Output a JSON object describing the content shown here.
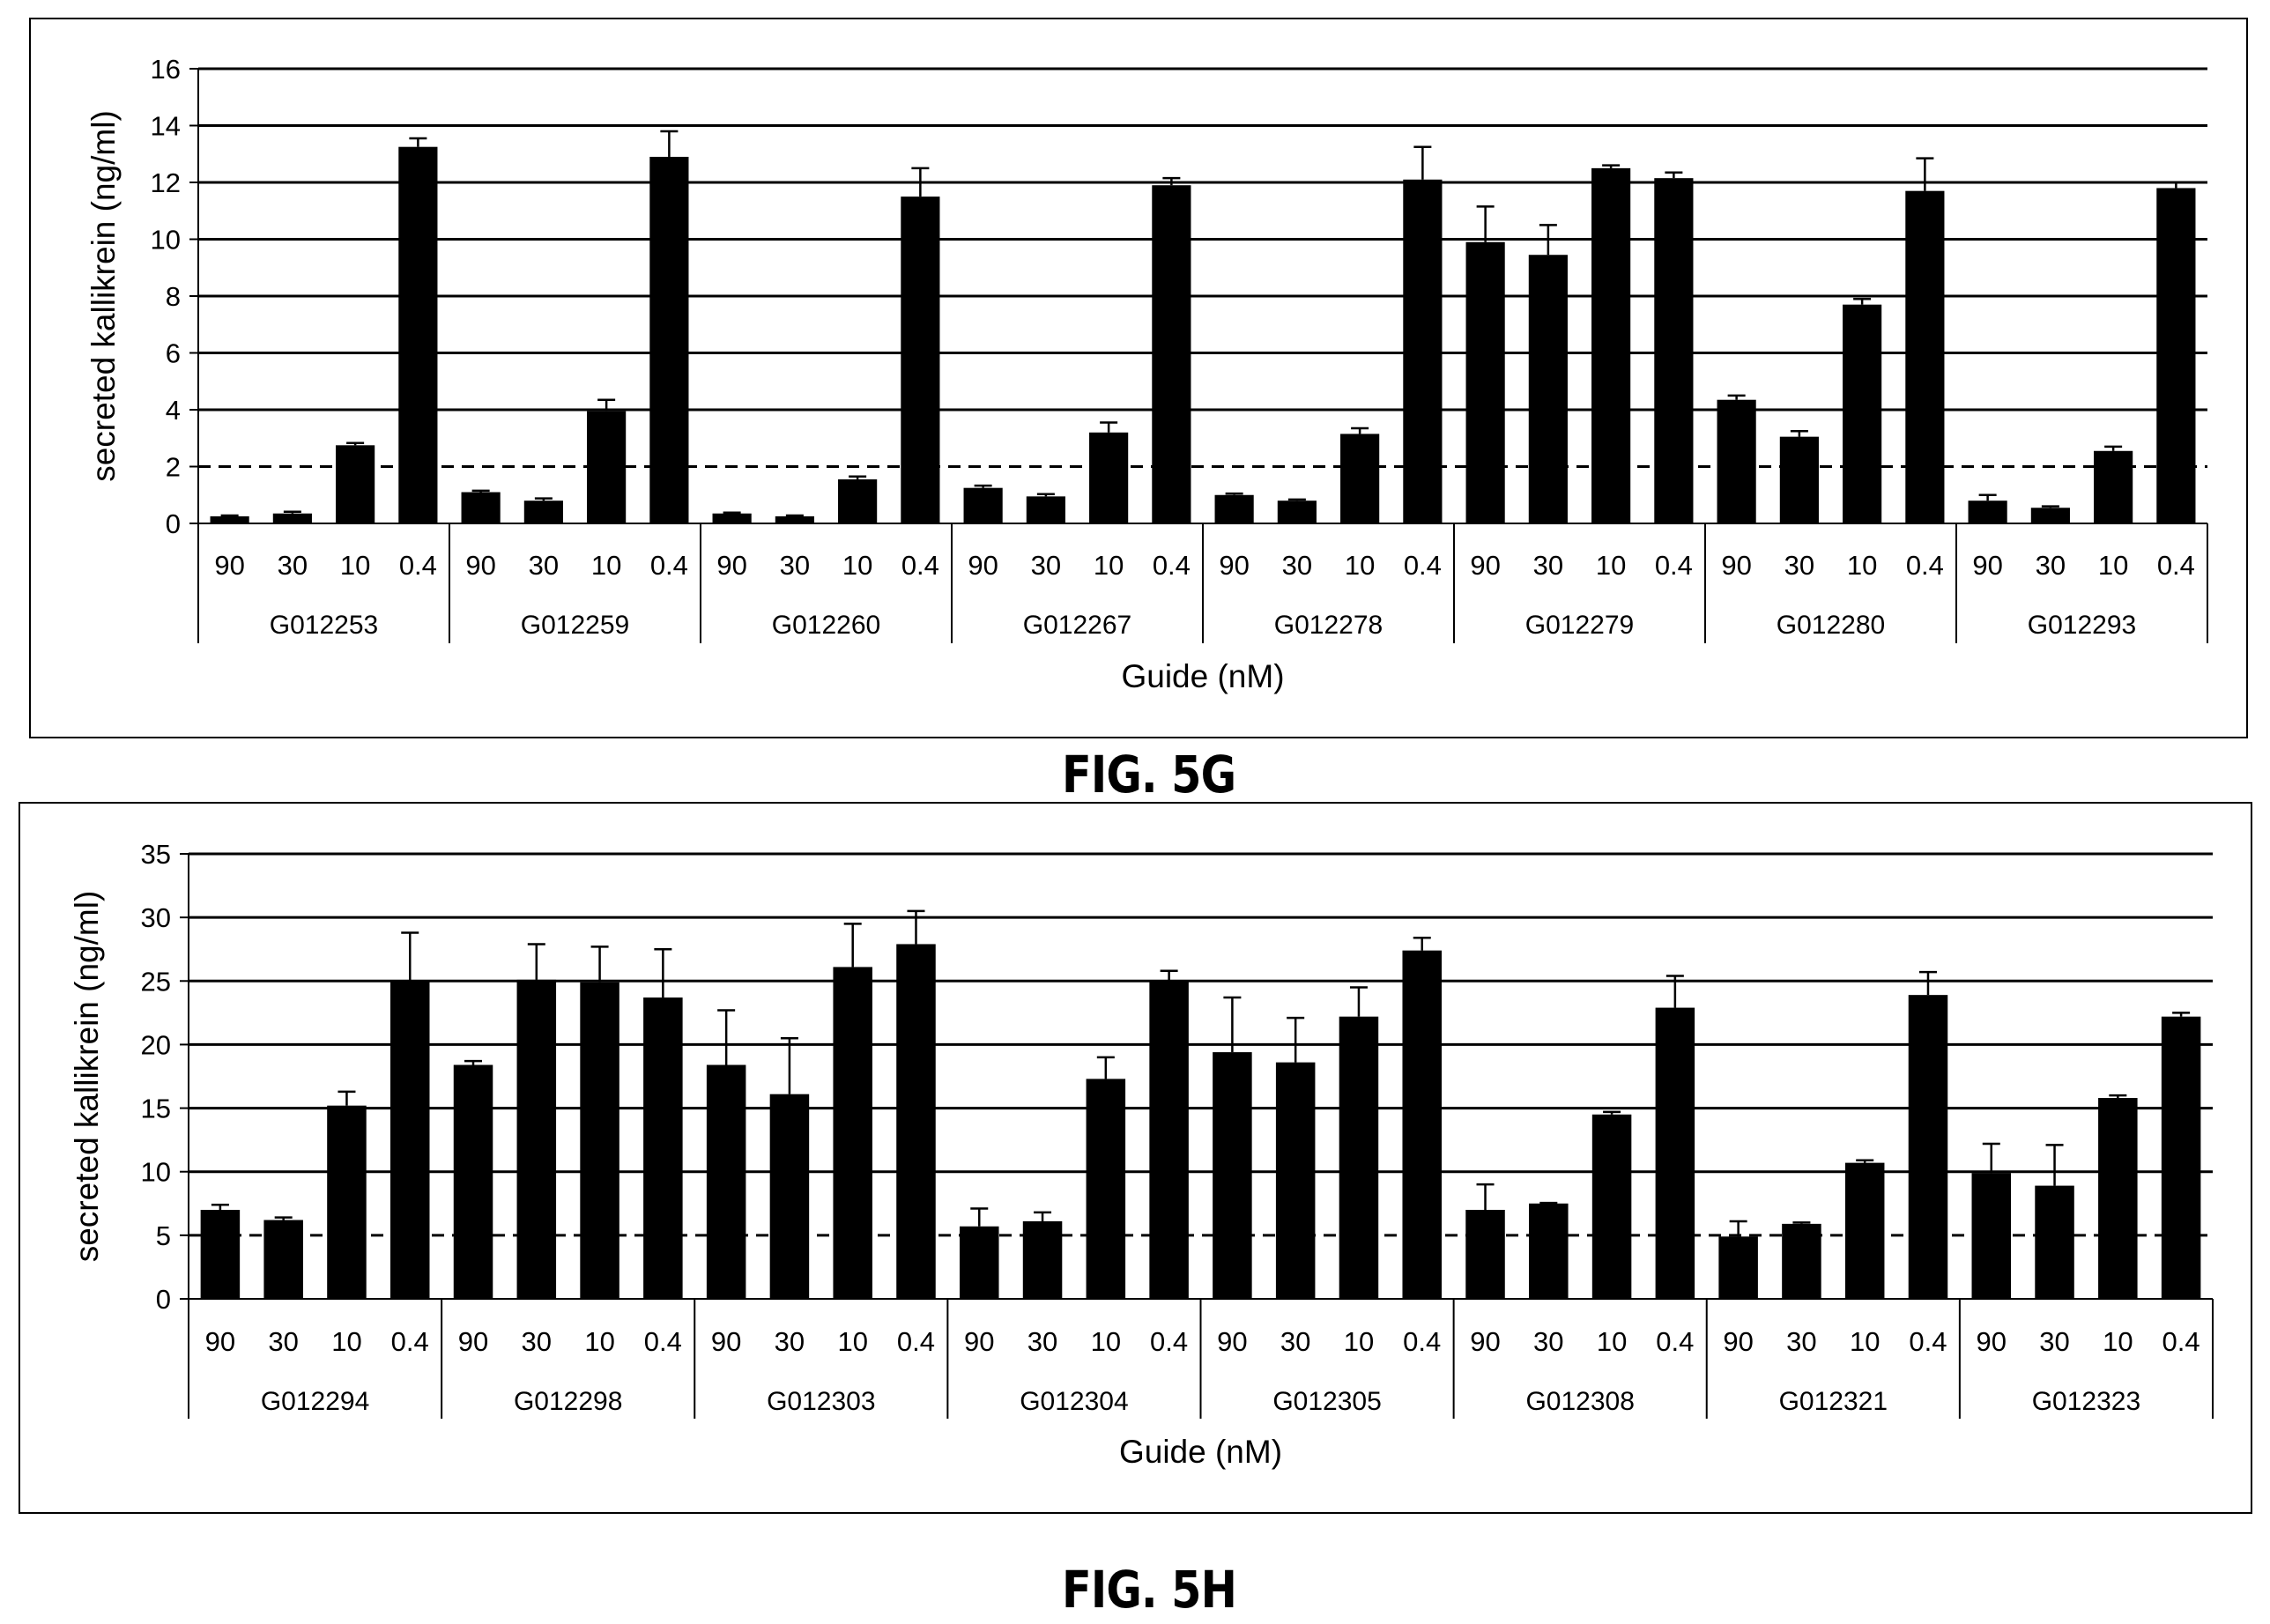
{
  "figures": [
    {
      "caption": "FIG. 5G",
      "chart_data": {
        "type": "bar",
        "title": "",
        "ylabel": "secreted kallikrein (ng/ml)",
        "xlabel": "Guide (nM)",
        "ylim": [
          0,
          16
        ],
        "yticks": [
          "0",
          "2",
          "4",
          "6",
          "8",
          "10",
          "12",
          "14",
          "16"
        ],
        "grid": "horizontal",
        "dose_labels": [
          "90",
          "30",
          "10",
          "0.4"
        ],
        "groups": [
          {
            "name": "G012253",
            "values": [
              0.25,
              0.35,
              2.75,
              13.25
            ],
            "errors": [
              0.03,
              0.06,
              0.08,
              0.3
            ]
          },
          {
            "name": "G012259",
            "values": [
              1.1,
              0.8,
              3.95,
              12.9
            ],
            "errors": [
              0.05,
              0.08,
              0.4,
              0.9
            ]
          },
          {
            "name": "G012260",
            "values": [
              0.35,
              0.25,
              1.55,
              11.5
            ],
            "errors": [
              0.03,
              0.03,
              0.1,
              1.0
            ]
          },
          {
            "name": "G012267",
            "values": [
              1.25,
              0.95,
              3.2,
              11.9
            ],
            "errors": [
              0.08,
              0.08,
              0.35,
              0.25
            ]
          },
          {
            "name": "G012278",
            "values": [
              1.0,
              0.8,
              3.15,
              12.1
            ],
            "errors": [
              0.05,
              0.04,
              0.2,
              1.15
            ]
          },
          {
            "name": "G012279",
            "values": [
              9.9,
              9.45,
              12.5,
              12.15
            ],
            "errors": [
              1.25,
              1.05,
              0.1,
              0.2
            ]
          },
          {
            "name": "G012280",
            "values": [
              4.35,
              3.05,
              7.7,
              11.7
            ],
            "errors": [
              0.15,
              0.2,
              0.2,
              1.15
            ]
          },
          {
            "name": "G012293",
            "values": [
              0.8,
              0.55,
              2.55,
              11.8
            ],
            "errors": [
              0.2,
              0.05,
              0.15,
              0.2
            ]
          }
        ]
      }
    },
    {
      "caption": "FIG. 5H",
      "chart_data": {
        "type": "bar",
        "title": "",
        "ylabel": "secreted kallikrein (ng/ml)",
        "xlabel": "Guide (nM)",
        "ylim": [
          0,
          35
        ],
        "yticks": [
          "0",
          "5",
          "10",
          "15",
          "20",
          "25",
          "30",
          "35"
        ],
        "grid": "horizontal",
        "dose_labels": [
          "90",
          "30",
          "10",
          "0.4"
        ],
        "groups": [
          {
            "name": "G012294",
            "values": [
              7.0,
              6.2,
              15.2,
              25.0
            ],
            "errors": [
              0.4,
              0.2,
              1.1,
              3.8
            ]
          },
          {
            "name": "G012298",
            "values": [
              18.4,
              25.1,
              24.9,
              23.7
            ],
            "errors": [
              0.3,
              2.8,
              2.8,
              3.8
            ]
          },
          {
            "name": "G012303",
            "values": [
              18.4,
              16.1,
              26.1,
              27.9
            ],
            "errors": [
              4.3,
              4.4,
              3.4,
              2.6
            ]
          },
          {
            "name": "G012304",
            "values": [
              5.7,
              6.1,
              17.3,
              25.0
            ],
            "errors": [
              1.4,
              0.7,
              1.7,
              0.8
            ]
          },
          {
            "name": "G012305",
            "values": [
              19.4,
              18.6,
              22.2,
              27.4
            ],
            "errors": [
              4.3,
              3.5,
              2.3,
              1.0
            ]
          },
          {
            "name": "G012308",
            "values": [
              7.0,
              7.5,
              14.5,
              22.9
            ],
            "errors": [
              2.0,
              0.05,
              0.2,
              2.5
            ]
          },
          {
            "name": "G012321",
            "values": [
              4.9,
              5.9,
              10.7,
              23.9
            ],
            "errors": [
              1.2,
              0.1,
              0.2,
              1.8
            ]
          },
          {
            "name": "G012323",
            "values": [
              9.9,
              8.9,
              15.8,
              22.2
            ],
            "errors": [
              2.3,
              3.2,
              0.2,
              0.3
            ]
          }
        ]
      }
    }
  ]
}
